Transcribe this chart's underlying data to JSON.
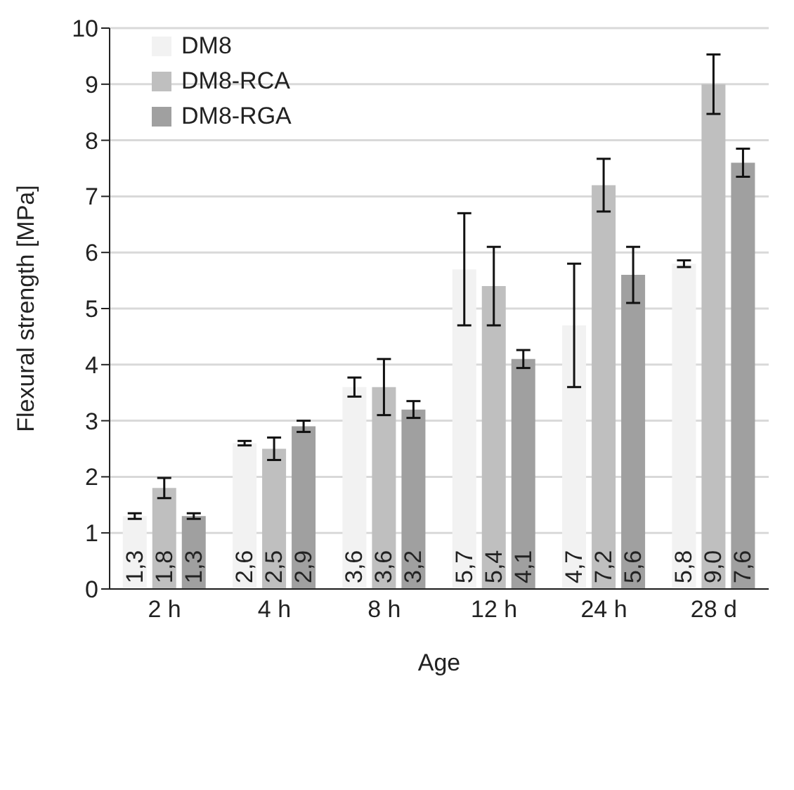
{
  "chart_data": {
    "type": "bar",
    "xlabel": "Age",
    "ylabel": "Flexural strength [MPa]",
    "categories": [
      "2 h",
      "4 h",
      "8 h",
      "12 h",
      "24 h",
      "28 d"
    ],
    "series": [
      {
        "name": "DM8",
        "color": "#f2f2f2",
        "values": [
          1.3,
          2.6,
          3.6,
          5.7,
          4.7,
          5.8
        ],
        "value_labels": [
          "1,3",
          "2,6",
          "3,6",
          "5,7",
          "4,7",
          "5,8"
        ],
        "errors": [
          0.05,
          0.04,
          0.17,
          1.0,
          1.1,
          0.06
        ]
      },
      {
        "name": "DM8-RCA",
        "color": "#bfbfbf",
        "values": [
          1.8,
          2.5,
          3.6,
          5.4,
          7.2,
          9.0
        ],
        "value_labels": [
          "1,8",
          "2,5",
          "3,6",
          "5,4",
          "7,2",
          "9,0"
        ],
        "errors": [
          0.18,
          0.2,
          0.5,
          0.7,
          0.47,
          0.53
        ]
      },
      {
        "name": "DM8-RGA",
        "color": "#a0a0a0",
        "values": [
          1.3,
          2.9,
          3.2,
          4.1,
          5.6,
          7.6
        ],
        "value_labels": [
          "1,3",
          "2,9",
          "3,2",
          "4,1",
          "5,6",
          "7,6"
        ],
        "errors": [
          0.05,
          0.1,
          0.15,
          0.16,
          0.5,
          0.25
        ]
      }
    ],
    "ylim": [
      0,
      10
    ],
    "yticks": [
      0,
      1,
      2,
      3,
      4,
      5,
      6,
      7,
      8,
      9,
      10
    ],
    "grid": "y",
    "legend": "top left"
  }
}
